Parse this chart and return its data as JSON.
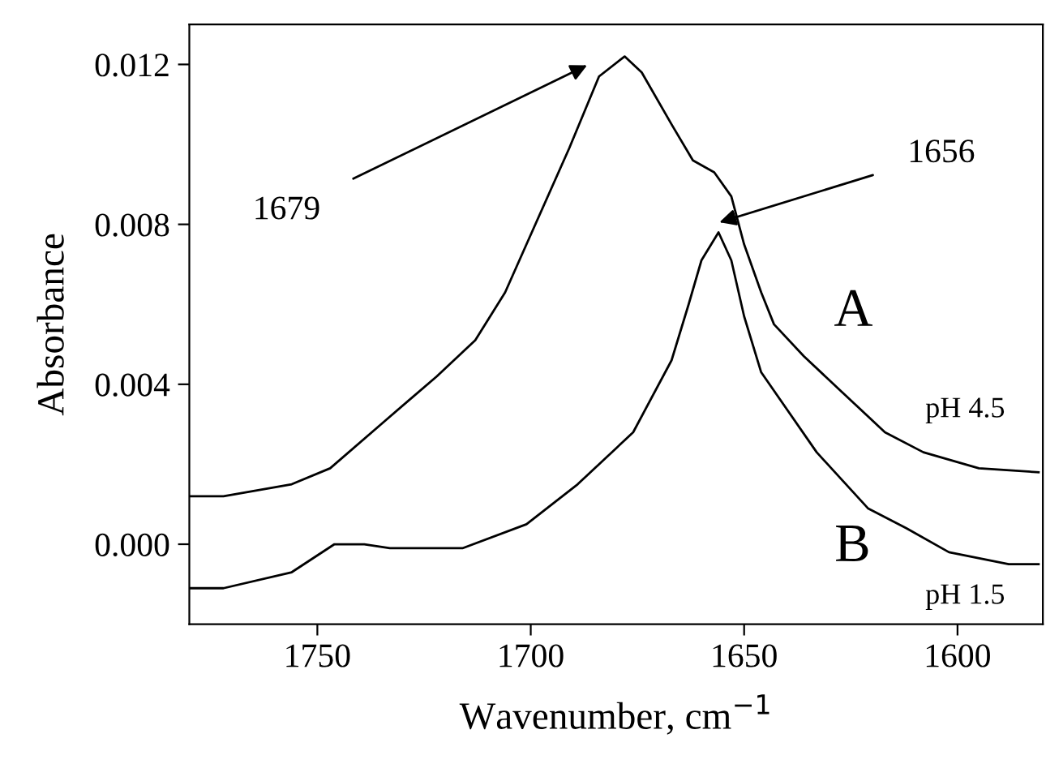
{
  "chart_data": {
    "type": "line",
    "xlabel": "Wavenumber, cm$^{−1}$",
    "ylabel": "Absorbance",
    "xlim": [
      1780,
      1580
    ],
    "xticks": [
      1750,
      1700,
      1650,
      1600
    ],
    "ylim": [
      -0.002,
      0.013
    ],
    "yticks": [
      {
        "value": 0.0,
        "label": "0.000"
      },
      {
        "value": 0.004,
        "label": "0.004"
      },
      {
        "value": 0.008,
        "label": "0.008"
      },
      {
        "value": 0.012,
        "label": "0.012"
      }
    ],
    "grid": false,
    "legend": false,
    "marker": "none",
    "line_style": "solid",
    "series": [
      {
        "color": "#000000",
        "x": [
          1780,
          1772,
          1756,
          1747,
          1734,
          1722,
          1713,
          1706,
          1701,
          1691,
          1684,
          1678,
          1674,
          1667,
          1662,
          1657,
          1653,
          1650,
          1646,
          1643,
          1636,
          1627,
          1617,
          1608,
          1595,
          1581
        ],
        "values": [
          0.0012,
          0.0012,
          0.0015,
          0.0019,
          0.0031,
          0.0042,
          0.0051,
          0.0063,
          0.0075,
          0.0099,
          0.0117,
          0.0122,
          0.0118,
          0.0105,
          0.0096,
          0.0093,
          0.0087,
          0.0075,
          0.0063,
          0.0055,
          0.0047,
          0.0038,
          0.0028,
          0.0023,
          0.0019,
          0.0018
        ]
      },
      {
        "color": "#000000",
        "x": [
          1780,
          1772,
          1756,
          1746,
          1739,
          1733,
          1716,
          1701,
          1689,
          1676,
          1667,
          1663,
          1660,
          1656,
          1653,
          1650,
          1646,
          1633,
          1621,
          1612,
          1602,
          1588,
          1581
        ],
        "values": [
          -0.0011,
          -0.0011,
          -0.0007,
          0.0,
          0.0,
          -0.0001,
          -0.0001,
          0.0005,
          0.0015,
          0.0028,
          0.0046,
          0.006,
          0.0071,
          0.0078,
          0.0071,
          0.0057,
          0.0043,
          0.0023,
          0.0009,
          0.0004,
          -0.0002,
          -0.0005,
          -0.0005
        ]
      }
    ],
    "annotations": [
      "1679",
      "1656",
      "A",
      "pH 4.5",
      "B",
      "pH 1.5"
    ]
  }
}
